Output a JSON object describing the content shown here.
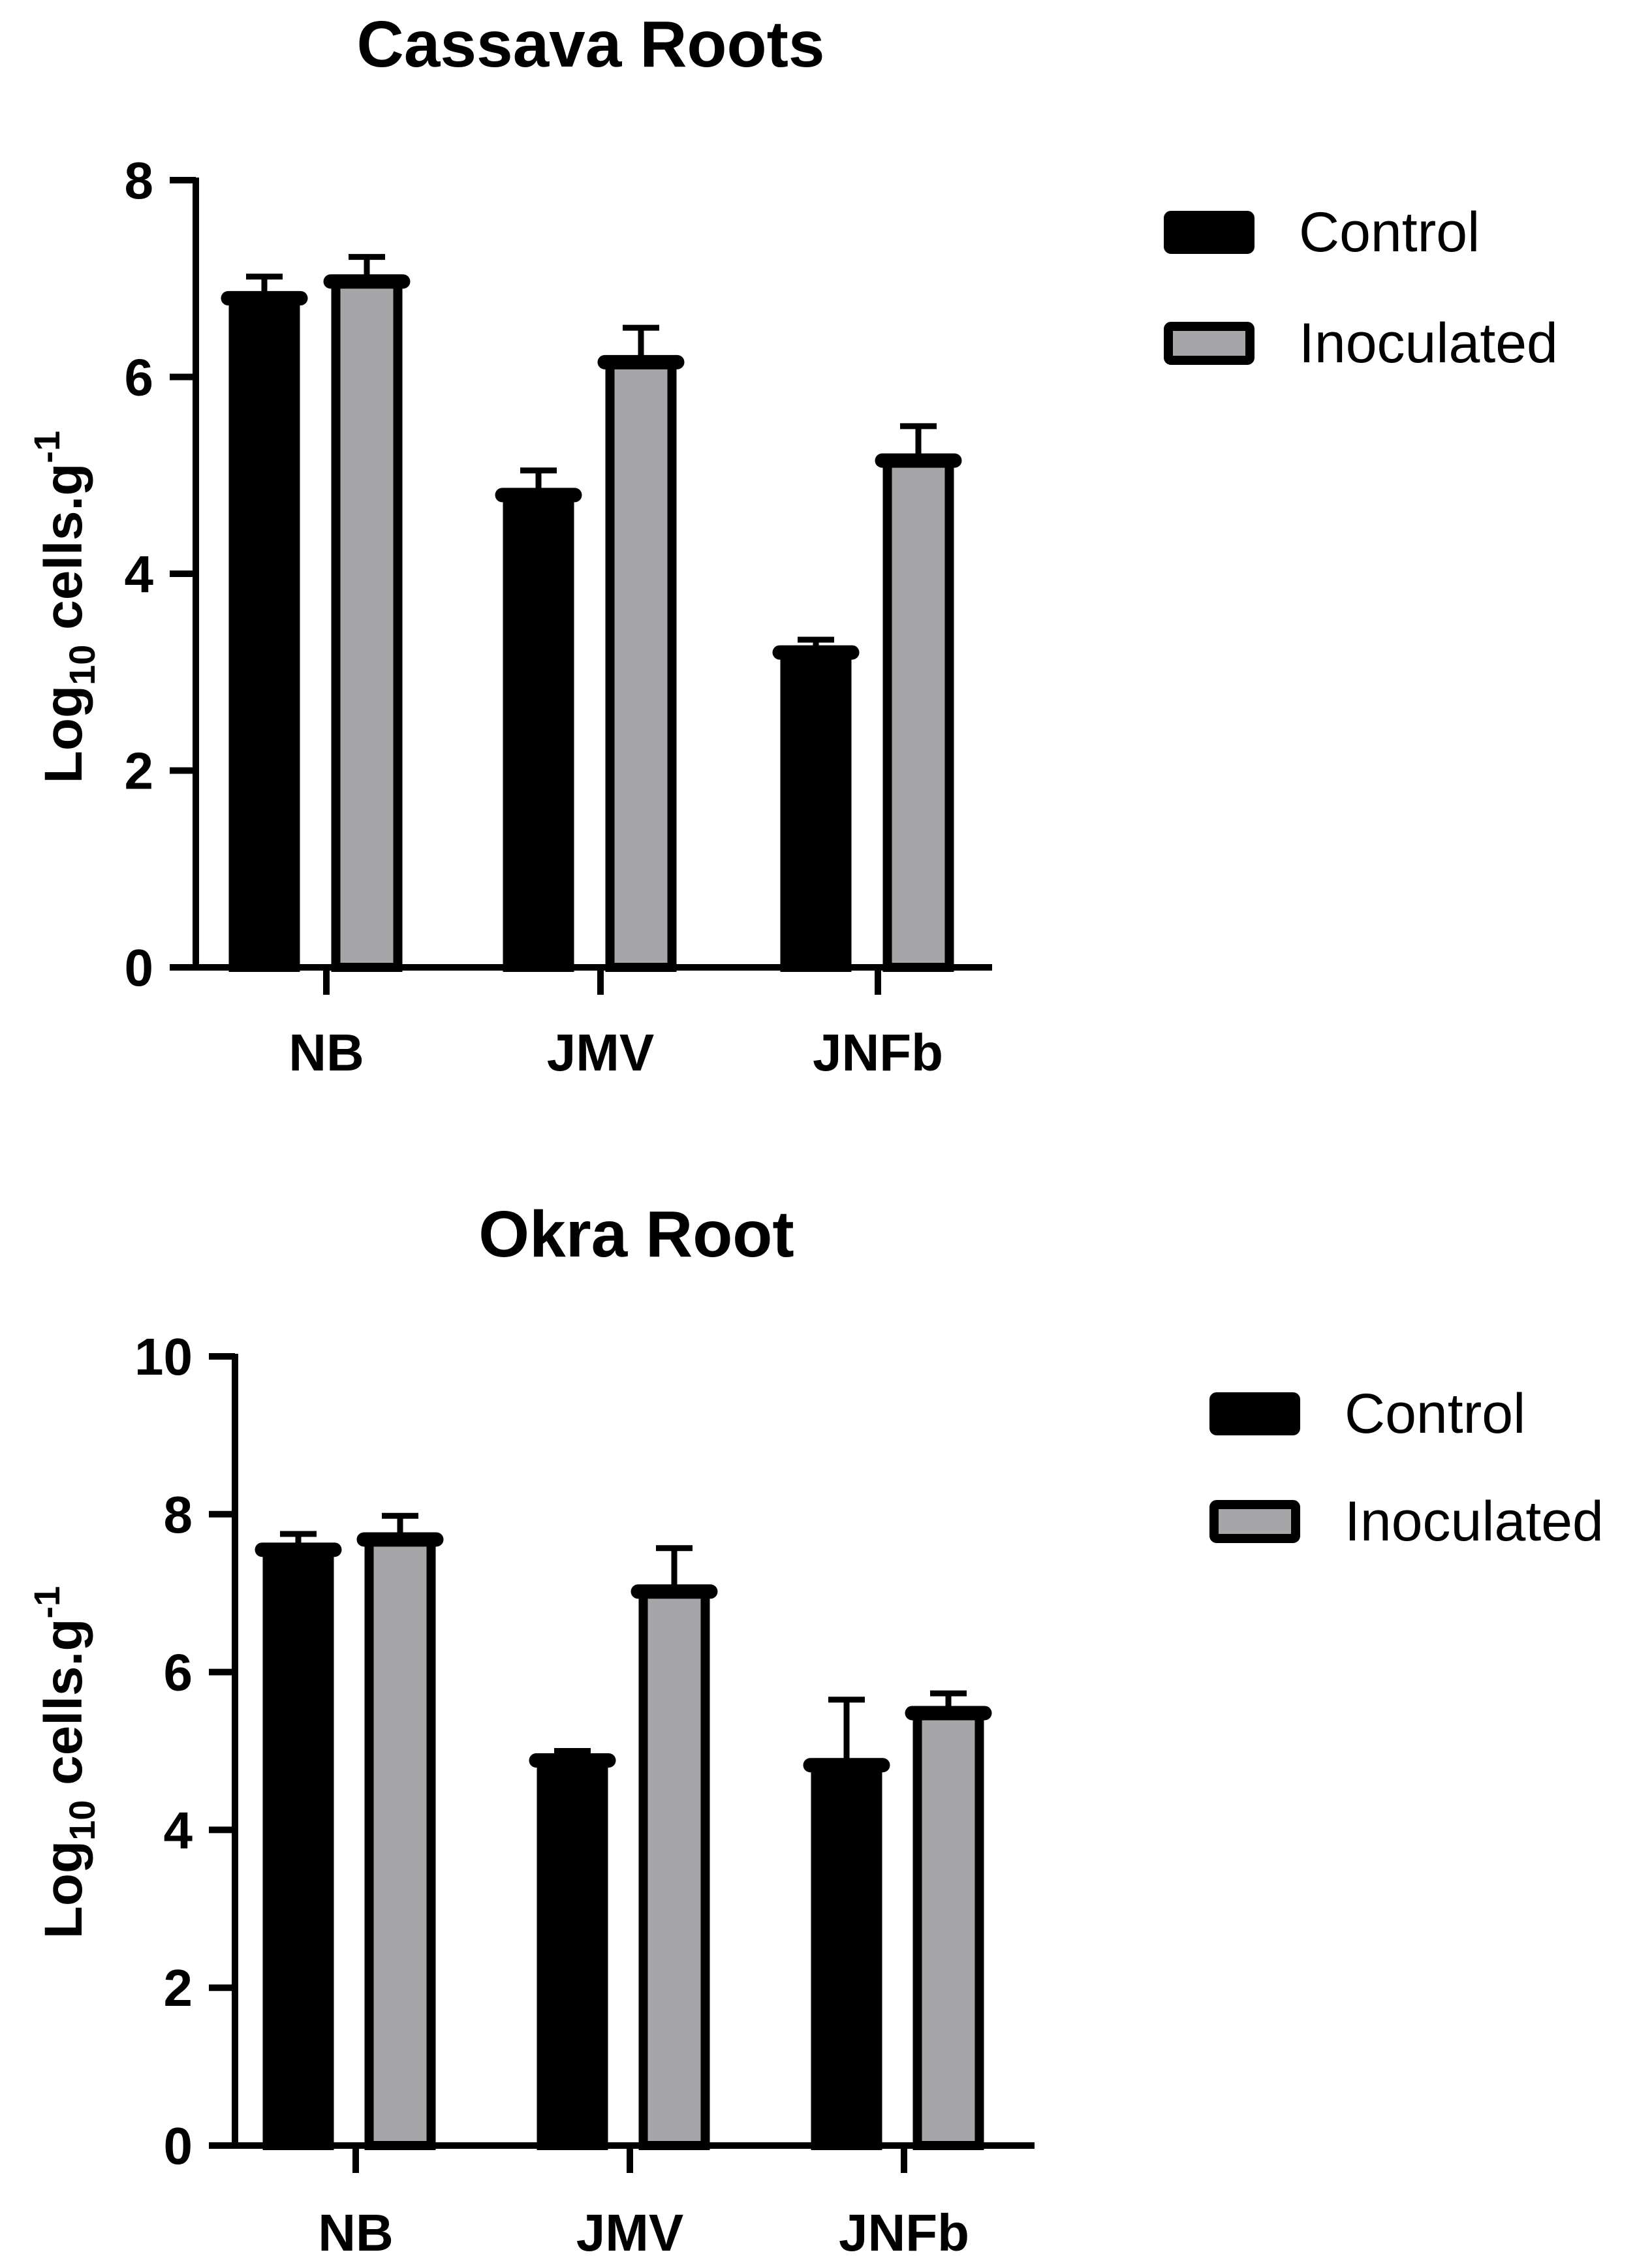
{
  "colors": {
    "control": "#000000",
    "inoculated": "#A6A6A8",
    "axis": "#000000",
    "background": "#FFFFFF"
  },
  "chart_data": [
    {
      "type": "bar",
      "title": "Cassava Roots",
      "ylabel_main": "Log",
      "ylabel_sub": "10",
      "ylabel_rest": " cells.g",
      "ylabel_sup": "-1",
      "xlabel": "",
      "categories": [
        "NB",
        "JMV",
        "JNFb"
      ],
      "ylim": [
        0,
        8
      ],
      "yticks": [
        0,
        2,
        4,
        6,
        8
      ],
      "ytick_labels": [
        "0",
        "2",
        "4",
        "6",
        "8"
      ],
      "legend": [
        "Control",
        "Inoculated"
      ],
      "legend_position": "top-right",
      "series": [
        {
          "name": "Control",
          "values": [
            6.8,
            4.8,
            3.2
          ],
          "errors": [
            0.22,
            0.25,
            0.13
          ]
        },
        {
          "name": "Inoculated",
          "values": [
            6.97,
            6.15,
            5.15
          ],
          "errors": [
            0.25,
            0.35,
            0.35
          ]
        }
      ]
    },
    {
      "type": "bar",
      "title": "Okra Root",
      "ylabel_main": "Log",
      "ylabel_sub": "10",
      "ylabel_rest": " cells.g",
      "ylabel_sup": "-1",
      "xlabel": "",
      "categories": [
        "NB",
        "JMV",
        "JNFb"
      ],
      "ylim": [
        0,
        10
      ],
      "yticks": [
        0,
        2,
        4,
        6,
        8,
        10
      ],
      "ytick_labels": [
        "0",
        "2",
        "4",
        "6",
        "8",
        "10"
      ],
      "legend": [
        "Control",
        "Inoculated"
      ],
      "legend_position": "top-right",
      "series": [
        {
          "name": "Control",
          "values": [
            7.55,
            4.88,
            4.82
          ],
          "errors": [
            0.2,
            0.12,
            0.83
          ]
        },
        {
          "name": "Inoculated",
          "values": [
            7.68,
            7.02,
            5.48
          ],
          "errors": [
            0.3,
            0.55,
            0.25
          ]
        }
      ]
    }
  ]
}
